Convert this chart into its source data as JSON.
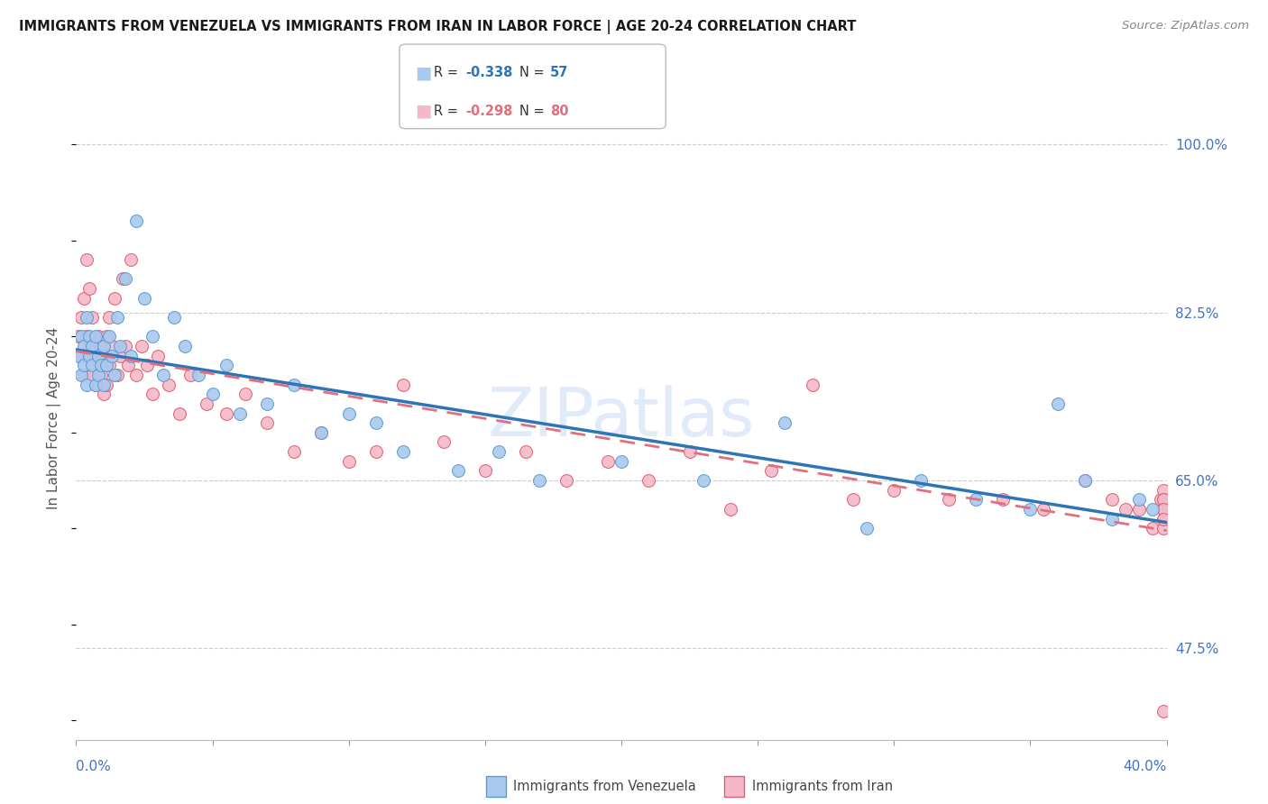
{
  "title": "IMMIGRANTS FROM VENEZUELA VS IMMIGRANTS FROM IRAN IN LABOR FORCE | AGE 20-24 CORRELATION CHART",
  "source": "Source: ZipAtlas.com",
  "ylabel": "In Labor Force | Age 20-24",
  "xmin": 0.0,
  "xmax": 0.4,
  "ymin": 0.38,
  "ymax": 1.05,
  "yticks": [
    1.0,
    0.825,
    0.65,
    0.475
  ],
  "ytick_labels": [
    "100.0%",
    "82.5%",
    "65.0%",
    "47.5%"
  ],
  "xtick_label_left": "0.0%",
  "xtick_label_right": "40.0%",
  "color_venezuela": "#aac9ee",
  "color_iran": "#f4b8c8",
  "color_venezuela_edge": "#5b9bd5",
  "color_iran_edge": "#e06070",
  "trendline_venezuela_color": "#2e75b6",
  "trendline_iran_color": "#e07080",
  "axis_label_color": "#4472C4",
  "title_color": "#1a1a1a",
  "source_color": "#888888",
  "grid_color": "#cccccc",
  "watermark_color": "#c8daf5",
  "legend_R_ven": "-0.338",
  "legend_N_ven": "57",
  "legend_R_iran": "-0.298",
  "legend_N_iran": "80",
  "venezuela_x": [
    0.001,
    0.002,
    0.002,
    0.003,
    0.003,
    0.004,
    0.004,
    0.005,
    0.005,
    0.006,
    0.006,
    0.007,
    0.007,
    0.008,
    0.008,
    0.009,
    0.01,
    0.01,
    0.011,
    0.012,
    0.013,
    0.014,
    0.015,
    0.016,
    0.018,
    0.02,
    0.022,
    0.025,
    0.028,
    0.032,
    0.036,
    0.04,
    0.045,
    0.05,
    0.055,
    0.06,
    0.07,
    0.08,
    0.09,
    0.1,
    0.11,
    0.12,
    0.14,
    0.155,
    0.17,
    0.2,
    0.23,
    0.26,
    0.29,
    0.31,
    0.33,
    0.35,
    0.36,
    0.37,
    0.38,
    0.39,
    0.395
  ],
  "venezuela_y": [
    0.78,
    0.8,
    0.76,
    0.79,
    0.77,
    0.82,
    0.75,
    0.78,
    0.8,
    0.79,
    0.77,
    0.75,
    0.8,
    0.76,
    0.78,
    0.77,
    0.79,
    0.75,
    0.77,
    0.8,
    0.78,
    0.76,
    0.82,
    0.79,
    0.86,
    0.78,
    0.92,
    0.84,
    0.8,
    0.76,
    0.82,
    0.79,
    0.76,
    0.74,
    0.77,
    0.72,
    0.73,
    0.75,
    0.7,
    0.72,
    0.71,
    0.68,
    0.66,
    0.68,
    0.65,
    0.67,
    0.65,
    0.71,
    0.6,
    0.65,
    0.63,
    0.62,
    0.73,
    0.65,
    0.61,
    0.63,
    0.62
  ],
  "iran_x": [
    0.001,
    0.002,
    0.002,
    0.003,
    0.003,
    0.004,
    0.004,
    0.005,
    0.005,
    0.006,
    0.006,
    0.007,
    0.007,
    0.008,
    0.008,
    0.009,
    0.009,
    0.01,
    0.01,
    0.011,
    0.011,
    0.012,
    0.012,
    0.013,
    0.014,
    0.015,
    0.016,
    0.017,
    0.018,
    0.019,
    0.02,
    0.022,
    0.024,
    0.026,
    0.028,
    0.03,
    0.034,
    0.038,
    0.042,
    0.048,
    0.055,
    0.062,
    0.07,
    0.08,
    0.09,
    0.1,
    0.11,
    0.12,
    0.135,
    0.15,
    0.165,
    0.18,
    0.195,
    0.21,
    0.225,
    0.24,
    0.255,
    0.27,
    0.285,
    0.3,
    0.32,
    0.34,
    0.355,
    0.37,
    0.38,
    0.385,
    0.39,
    0.395,
    0.398,
    0.399,
    0.399,
    0.399,
    0.399,
    0.399,
    0.399,
    0.399,
    0.399,
    0.399,
    0.399,
    0.399
  ],
  "iran_y": [
    0.8,
    0.78,
    0.82,
    0.76,
    0.84,
    0.88,
    0.8,
    0.85,
    0.79,
    0.82,
    0.76,
    0.78,
    0.75,
    0.8,
    0.77,
    0.76,
    0.79,
    0.74,
    0.78,
    0.8,
    0.75,
    0.77,
    0.82,
    0.79,
    0.84,
    0.76,
    0.78,
    0.86,
    0.79,
    0.77,
    0.88,
    0.76,
    0.79,
    0.77,
    0.74,
    0.78,
    0.75,
    0.72,
    0.76,
    0.73,
    0.72,
    0.74,
    0.71,
    0.68,
    0.7,
    0.67,
    0.68,
    0.75,
    0.69,
    0.66,
    0.68,
    0.65,
    0.67,
    0.65,
    0.68,
    0.62,
    0.66,
    0.75,
    0.63,
    0.64,
    0.63,
    0.63,
    0.62,
    0.65,
    0.63,
    0.62,
    0.62,
    0.6,
    0.63,
    0.64,
    0.62,
    0.61,
    0.63,
    0.62,
    0.6,
    0.62,
    0.63,
    0.62,
    0.61,
    0.41
  ]
}
